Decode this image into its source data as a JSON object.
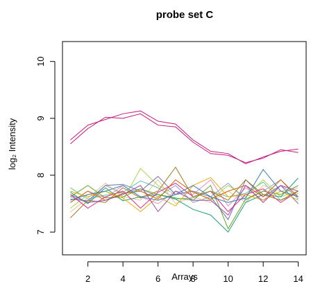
{
  "chart_data": {
    "type": "line",
    "title": "probe set  C",
    "xlabel": "Arrays",
    "ylabel": "log₂ Intensity",
    "xlim": [
      0.55,
      14.45
    ],
    "ylim": [
      6.6,
      10.35
    ],
    "xticks": [
      2,
      4,
      6,
      8,
      10,
      12,
      14
    ],
    "yticks": [
      7,
      8,
      9,
      10
    ],
    "grid": false,
    "legend": "none",
    "x": [
      1,
      2,
      3,
      4,
      5,
      6,
      7,
      8,
      9,
      10,
      11,
      12,
      13,
      14
    ],
    "series": [
      {
        "color": "#c51b7d",
        "values": [
          8.62,
          8.88,
          8.98,
          9.08,
          9.13,
          8.95,
          8.9,
          8.62,
          8.42,
          8.38,
          8.2,
          8.32,
          8.42,
          8.46
        ]
      },
      {
        "color": "#c51b7d",
        "values": [
          8.55,
          8.82,
          9.02,
          9.0,
          9.08,
          8.88,
          8.85,
          8.58,
          8.38,
          8.35,
          8.22,
          8.3,
          8.45,
          8.4
        ]
      },
      {
        "color": "#66c2a5",
        "values": [
          7.78,
          7.58,
          7.65,
          7.7,
          7.9,
          7.78,
          7.58,
          7.6,
          7.72,
          7.62,
          7.68,
          7.88,
          7.56,
          7.68
        ]
      },
      {
        "color": "#e78ac3",
        "values": [
          7.52,
          7.72,
          7.6,
          7.82,
          7.62,
          7.5,
          7.72,
          7.66,
          7.92,
          7.46,
          7.78,
          7.56,
          7.82,
          7.62
        ]
      },
      {
        "color": "#8da0cb",
        "values": [
          7.62,
          7.52,
          7.82,
          7.68,
          7.76,
          7.62,
          7.82,
          7.52,
          7.62,
          7.86,
          7.56,
          7.72,
          7.92,
          7.58
        ]
      },
      {
        "color": "#a6d854",
        "values": [
          7.42,
          7.66,
          7.72,
          7.56,
          8.12,
          7.82,
          7.66,
          7.72,
          7.56,
          7.82,
          7.62,
          7.92,
          7.62,
          7.72
        ]
      },
      {
        "color": "#e5c494",
        "values": [
          7.35,
          7.6,
          7.86,
          7.62,
          7.56,
          7.92,
          7.5,
          7.62,
          7.52,
          7.72,
          7.52,
          7.82,
          7.72,
          7.78
        ]
      },
      {
        "color": "#1b9e77",
        "values": [
          7.7,
          7.5,
          7.78,
          7.55,
          7.62,
          7.66,
          7.58,
          7.4,
          7.3,
          7.0,
          7.52,
          7.66,
          7.62,
          7.95
        ]
      },
      {
        "color": "#7570b3",
        "values": [
          7.58,
          7.55,
          7.82,
          7.84,
          7.72,
          7.98,
          7.66,
          7.72,
          7.62,
          7.22,
          7.92,
          7.62,
          7.82,
          7.5
        ]
      },
      {
        "color": "#e7298a",
        "values": [
          7.66,
          7.42,
          7.62,
          7.72,
          7.42,
          7.7,
          7.86,
          7.62,
          7.72,
          7.36,
          7.66,
          7.76,
          7.52,
          7.72
        ]
      },
      {
        "color": "#d95f02",
        "values": [
          7.52,
          7.72,
          7.56,
          7.68,
          7.72,
          7.58,
          7.92,
          7.7,
          7.58,
          7.72,
          7.82,
          7.62,
          7.92,
          7.62
        ]
      },
      {
        "color": "#66a61e",
        "values": [
          7.62,
          7.82,
          7.6,
          7.62,
          7.76,
          7.66,
          7.6,
          7.56,
          7.82,
          7.06,
          7.58,
          7.72,
          7.66,
          7.82
        ]
      },
      {
        "color": "#e6ab02",
        "values": [
          7.72,
          7.62,
          7.72,
          7.6,
          7.36,
          7.62,
          7.46,
          7.82,
          7.96,
          7.62,
          7.66,
          7.56,
          7.72,
          7.56
        ]
      },
      {
        "color": "#a6761d",
        "values": [
          7.25,
          7.56,
          7.52,
          7.78,
          7.6,
          7.72,
          8.14,
          7.62,
          7.72,
          7.56,
          7.92,
          7.66,
          7.56,
          7.72
        ]
      },
      {
        "color": "#377eb8",
        "values": [
          7.56,
          7.66,
          7.72,
          7.82,
          7.62,
          7.56,
          7.66,
          7.82,
          7.62,
          7.52,
          7.6,
          8.1,
          7.72,
          7.62
        ]
      },
      {
        "color": "#984ea3",
        "values": [
          7.66,
          7.52,
          7.56,
          7.66,
          7.82,
          7.36,
          7.72,
          7.56,
          7.56,
          7.3,
          7.82,
          7.52,
          7.82,
          7.72
        ]
      }
    ]
  }
}
